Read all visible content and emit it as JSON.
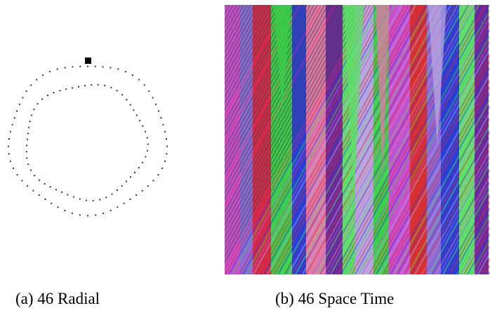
{
  "figure": {
    "subfigures": [
      {
        "caption": "(a)  46 Radial"
      },
      {
        "caption": "(b)  46 Space Time"
      }
    ]
  },
  "colors": {
    "background": "#ffffff",
    "dots": "#333333",
    "spacetime_palette": [
      "#d42a4a",
      "#2a3fd6",
      "#3bcf4a",
      "#c94fd0",
      "#e07aa8",
      "#8a6bd8",
      "#5fe06a",
      "#6a2a9c",
      "#b8a6e0",
      "#d63030"
    ]
  }
}
